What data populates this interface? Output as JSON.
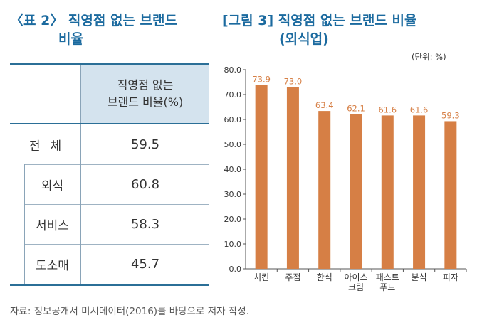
{
  "table": {
    "title_line1": "〈표 2〉 직영점 없는 브랜드",
    "title_line2": "비율",
    "header_line1": "직영점 없는",
    "header_line2": "브랜드 비율(%)",
    "rows": [
      {
        "label": "전체",
        "value": "59.5"
      },
      {
        "label": "외식",
        "value": "60.8"
      },
      {
        "label": "서비스",
        "value": "58.3"
      },
      {
        "label": "도소매",
        "value": "45.7"
      }
    ]
  },
  "chart": {
    "title_line1": "[그림 3] 직영점 없는 브랜드 비율",
    "title_line2": "(외식업)",
    "unit": "(단위: %)"
  },
  "chart_data": {
    "type": "bar",
    "categories": [
      "치킨",
      "주점",
      "한식",
      "아이스 크림",
      "패스트 푸드",
      "분식",
      "피자"
    ],
    "values": [
      73.9,
      73.0,
      63.4,
      62.1,
      61.6,
      61.6,
      59.3
    ],
    "ylim": [
      0,
      80
    ],
    "yticks": [
      "0.0",
      "10.0",
      "20.0",
      "30.0",
      "40.0",
      "50.0",
      "60.0",
      "70.0",
      "80.0"
    ],
    "bar_color": "#d67f45",
    "label_color": "#d67f45",
    "grid": false
  },
  "source": "자료: 정보공개서 미시데이터(2016)를 바탕으로 저자 작성."
}
